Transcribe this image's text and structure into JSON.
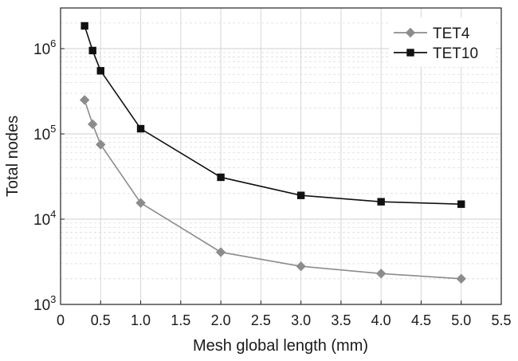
{
  "chart_data": {
    "type": "line",
    "title": "",
    "xlabel": "Mesh global length (mm)",
    "ylabel": "Total nodes",
    "xlim": [
      0,
      5.5
    ],
    "ylim": [
      1000,
      3000000
    ],
    "yscale": "log",
    "grid": true,
    "legend": "top-right",
    "x_ticks": [
      "0",
      "0.5",
      "1.0",
      "1.5",
      "2.0",
      "2.5",
      "3.0",
      "3.5",
      "4.0",
      "4.5",
      "5.0",
      "5.5"
    ],
    "y_ticks": [
      {
        "base": "10",
        "exp": "3"
      },
      {
        "base": "10",
        "exp": "4"
      },
      {
        "base": "10",
        "exp": "5"
      },
      {
        "base": "10",
        "exp": "6"
      }
    ],
    "series": [
      {
        "name": "TET4",
        "color": "#8c8c8c",
        "marker": "diamond",
        "x": [
          0.3,
          0.4,
          0.5,
          1.0,
          2.0,
          3.0,
          4.0,
          5.0
        ],
        "y": [
          250000,
          130000,
          75000,
          15500,
          4100,
          2800,
          2300,
          2000
        ]
      },
      {
        "name": "TET10",
        "color": "#111111",
        "marker": "square",
        "x": [
          0.3,
          0.4,
          0.5,
          1.0,
          2.0,
          3.0,
          4.0,
          5.0
        ],
        "y": [
          1850000,
          950000,
          550000,
          115000,
          31000,
          19000,
          16000,
          15000
        ]
      }
    ]
  }
}
